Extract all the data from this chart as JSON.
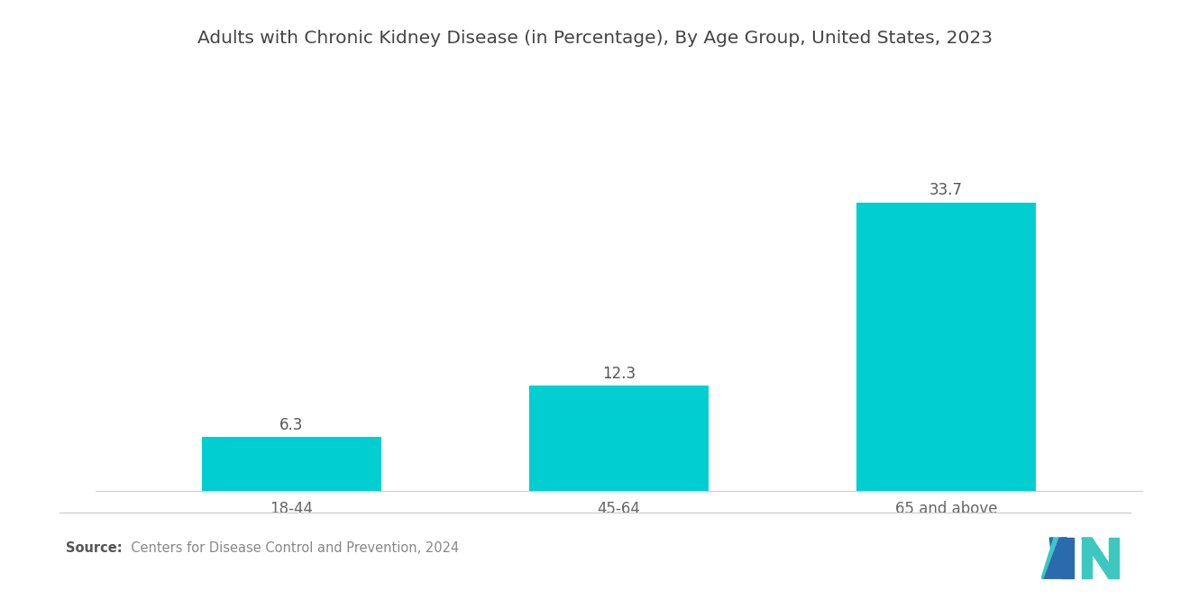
{
  "title": "Adults with Chronic Kidney Disease (in Percentage), By Age Group, United States, 2023",
  "categories": [
    "18-44",
    "45-64",
    "65 and above"
  ],
  "values": [
    6.3,
    12.3,
    33.7
  ],
  "bar_color": "#00CED1",
  "background_color": "#ffffff",
  "title_fontsize": 14.5,
  "label_fontsize": 12,
  "value_fontsize": 12,
  "source_bold": "Source:",
  "source_normal": "  Centers for Disease Control and Prevention, 2024",
  "ylim": [
    0,
    42
  ],
  "logo_blue": "#2B6BAD",
  "logo_teal": "#3CC8C0"
}
